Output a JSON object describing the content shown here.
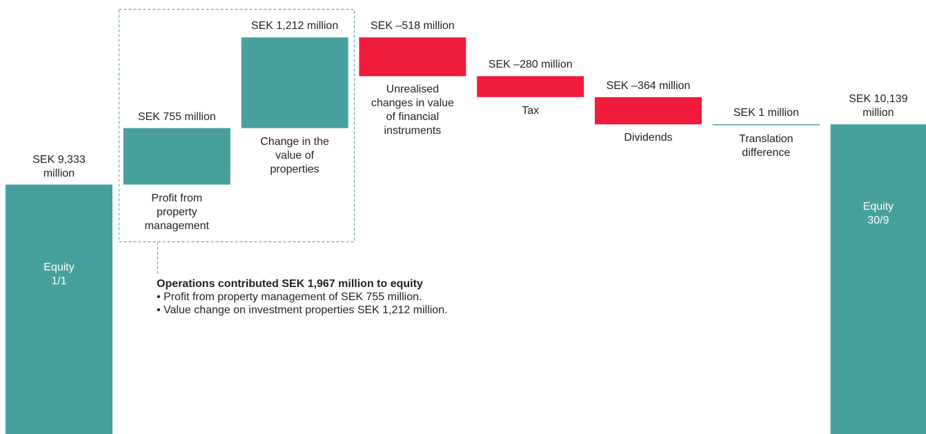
{
  "chart_data": {
    "type": "waterfall",
    "categories": [
      "Equity 1/1",
      "Profit from property management",
      "Change in the value of properties",
      "Unrealised changes in value of financial instruments",
      "Tax",
      "Dividends",
      "Translation difference",
      "Equity 30/9"
    ],
    "measure": [
      "absolute",
      "relative",
      "relative",
      "relative",
      "relative",
      "relative",
      "relative",
      "absolute"
    ],
    "values": [
      9333,
      755,
      1212,
      -518,
      -280,
      -364,
      1,
      10139
    ],
    "value_labels": [
      "SEK 9,333 million",
      "SEK 755 million",
      "SEK 1,212 million",
      "SEK –518 million",
      "SEK –280 million",
      "SEK –364 million",
      "SEK 1 million",
      "SEK 10,139 million"
    ],
    "colors": {
      "absolute": "#48a09e",
      "increase": "#48a09e",
      "decrease": "#ef1c3c"
    },
    "ylim": [
      6000,
      11800
    ],
    "annotation": {
      "title": "Operations contributed SEK 1,967 million to equity",
      "bullets": [
        "• Profit from property management of SEK 755 million.",
        "• Value change on investment properties SEK 1,212 million."
      ]
    }
  }
}
